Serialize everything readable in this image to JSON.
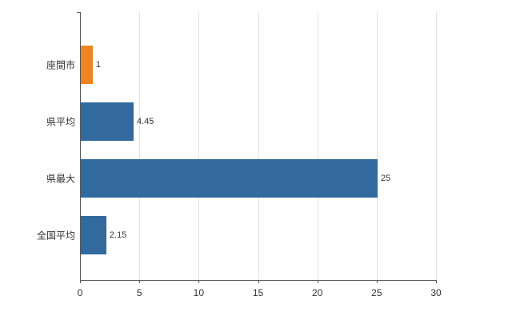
{
  "chart_data": {
    "type": "bar",
    "orientation": "horizontal",
    "title": "",
    "xlabel": "",
    "ylabel": "",
    "categories": [
      "座間市",
      "県平均",
      "県最大",
      "全国平均"
    ],
    "values": [
      1,
      4.45,
      25,
      2.15
    ],
    "value_labels": [
      "1",
      "4.45",
      "25",
      "2.15"
    ],
    "bar_colors": [
      "#ED8522",
      "#336A9E",
      "#336A9E",
      "#336A9E"
    ],
    "xlim": [
      0,
      30
    ],
    "xticks": [
      0,
      5,
      10,
      15,
      20,
      25,
      30
    ],
    "grid": true,
    "legend": "none",
    "colors": {
      "highlight_orange": "#ED8522",
      "series_blue": "#336A9E",
      "axis": "#595959",
      "gridline": "#e2e2e2",
      "text": "#333333",
      "background": "#ffffff"
    }
  }
}
